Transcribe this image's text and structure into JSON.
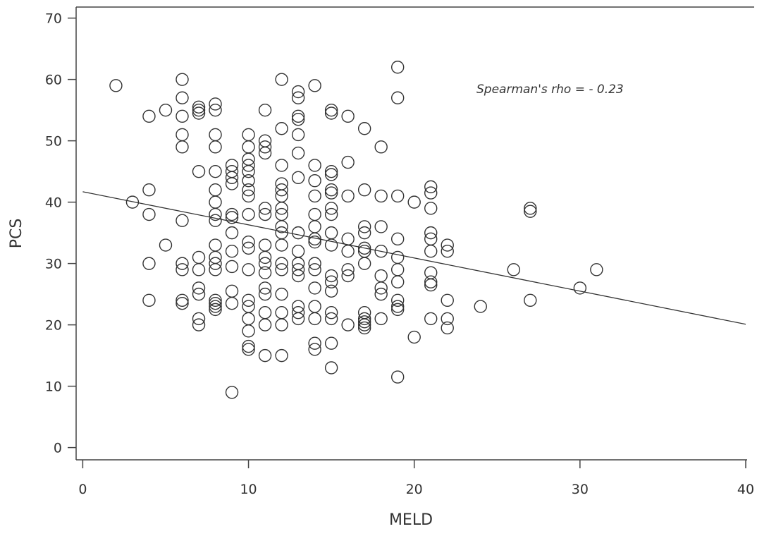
{
  "chart_data": {
    "type": "scatter",
    "xlabel": "MELD",
    "ylabel": "PCS",
    "annotation": "Spearman's rho = - 0.23",
    "xlim": [
      -0.4,
      40
    ],
    "ylim": [
      -2,
      71.8
    ],
    "xticks": [
      0,
      10,
      20,
      30,
      40
    ],
    "yticks": [
      0,
      10,
      20,
      30,
      40,
      50,
      60,
      70
    ],
    "color": "#333333",
    "x": [
      2,
      3,
      4,
      4,
      4,
      4,
      4,
      5,
      5,
      6,
      6,
      6,
      6,
      6,
      6,
      6,
      6,
      6,
      6,
      7,
      7,
      7,
      7,
      7,
      7,
      7,
      7,
      7,
      7,
      8,
      8,
      8,
      8,
      8,
      8,
      8,
      8,
      8,
      8,
      8,
      8,
      8,
      8,
      8,
      8,
      8,
      9,
      9,
      9,
      9,
      9,
      9,
      9,
      9,
      9,
      9,
      9,
      9,
      10,
      10,
      10,
      10,
      10,
      10,
      10,
      10,
      10,
      10,
      10,
      10,
      10,
      10,
      10,
      10,
      10,
      10,
      11,
      11,
      11,
      11,
      11,
      11,
      11,
      11,
      11,
      11,
      11,
      11,
      11,
      11,
      11,
      12,
      12,
      12,
      12,
      12,
      12,
      12,
      12,
      12,
      12,
      12,
      12,
      12,
      12,
      12,
      12,
      12,
      13,
      13,
      13,
      13,
      13,
      13,
      13,
      13,
      13,
      13,
      13,
      13,
      13,
      13,
      13,
      14,
      14,
      14,
      14,
      14,
      14,
      14,
      14,
      14,
      14,
      14,
      14,
      14,
      14,
      14,
      15,
      15,
      15,
      15,
      15,
      15,
      15,
      15,
      15,
      15,
      15,
      15,
      15,
      15,
      15,
      15,
      15,
      16,
      16,
      16,
      16,
      16,
      16,
      16,
      16,
      17,
      17,
      17,
      17,
      17,
      17,
      17,
      17,
      17,
      17,
      17,
      17,
      18,
      18,
      18,
      18,
      18,
      18,
      18,
      18,
      19,
      19,
      19,
      19,
      19,
      19,
      19,
      19,
      19,
      19,
      19,
      20,
      20,
      21,
      21,
      21,
      21,
      21,
      21,
      21,
      21,
      21,
      21,
      22,
      22,
      22,
      22,
      22,
      24,
      26,
      27,
      27,
      27,
      30,
      31
    ],
    "y": [
      59,
      40,
      54,
      42,
      38,
      30,
      24,
      55,
      33,
      60,
      57,
      54,
      51,
      49,
      37,
      30,
      29,
      24,
      23.5,
      55.5,
      55,
      54.5,
      45,
      31,
      29,
      26,
      25,
      21,
      20,
      56,
      55,
      51,
      49,
      45,
      42,
      40,
      38,
      37,
      33,
      31,
      30,
      29,
      24,
      23.5,
      23,
      22.5,
      46,
      45,
      44,
      43,
      38,
      37.5,
      35,
      32,
      29.5,
      25.5,
      23.5,
      9,
      51,
      49,
      47,
      46,
      45,
      43.5,
      42,
      41,
      38,
      33.5,
      32.5,
      29,
      24,
      23,
      21,
      19,
      16.5,
      16,
      55,
      50,
      49,
      48,
      39,
      38,
      33,
      31,
      30,
      28.5,
      26,
      25,
      22,
      20,
      15,
      60,
      52,
      46,
      43,
      42,
      41,
      39,
      38,
      36,
      35,
      33,
      30,
      29,
      25,
      22,
      20,
      15,
      58,
      57,
      54,
      53.5,
      51,
      48,
      44,
      35,
      32,
      30,
      29,
      28,
      23,
      22,
      21,
      59,
      46,
      43.5,
      41,
      38,
      36,
      34,
      33.5,
      30,
      29,
      26,
      23,
      21,
      17,
      16,
      55,
      54.5,
      45,
      44.5,
      42,
      41.5,
      39,
      38,
      35,
      33,
      28,
      27,
      25.5,
      22,
      21,
      17,
      13,
      54,
      46.5,
      41,
      34,
      32,
      29,
      28,
      20,
      52,
      42,
      36,
      35,
      32.5,
      32,
      30,
      22,
      21,
      20.5,
      20,
      19.5,
      49,
      41,
      36,
      32,
      28,
      26,
      25,
      21,
      62,
      57,
      41,
      34,
      31,
      29,
      27,
      24,
      23,
      22.5,
      11.5,
      40,
      18,
      42.5,
      41.5,
      39,
      35,
      34,
      32,
      28.5,
      27,
      26.5,
      21,
      33,
      32,
      24,
      21,
      19.5,
      23,
      29,
      39,
      38.5,
      24,
      26,
      29
    ],
    "fit_line": {
      "x": [
        0,
        40
      ],
      "y": [
        41.7,
        20.1
      ]
    }
  }
}
